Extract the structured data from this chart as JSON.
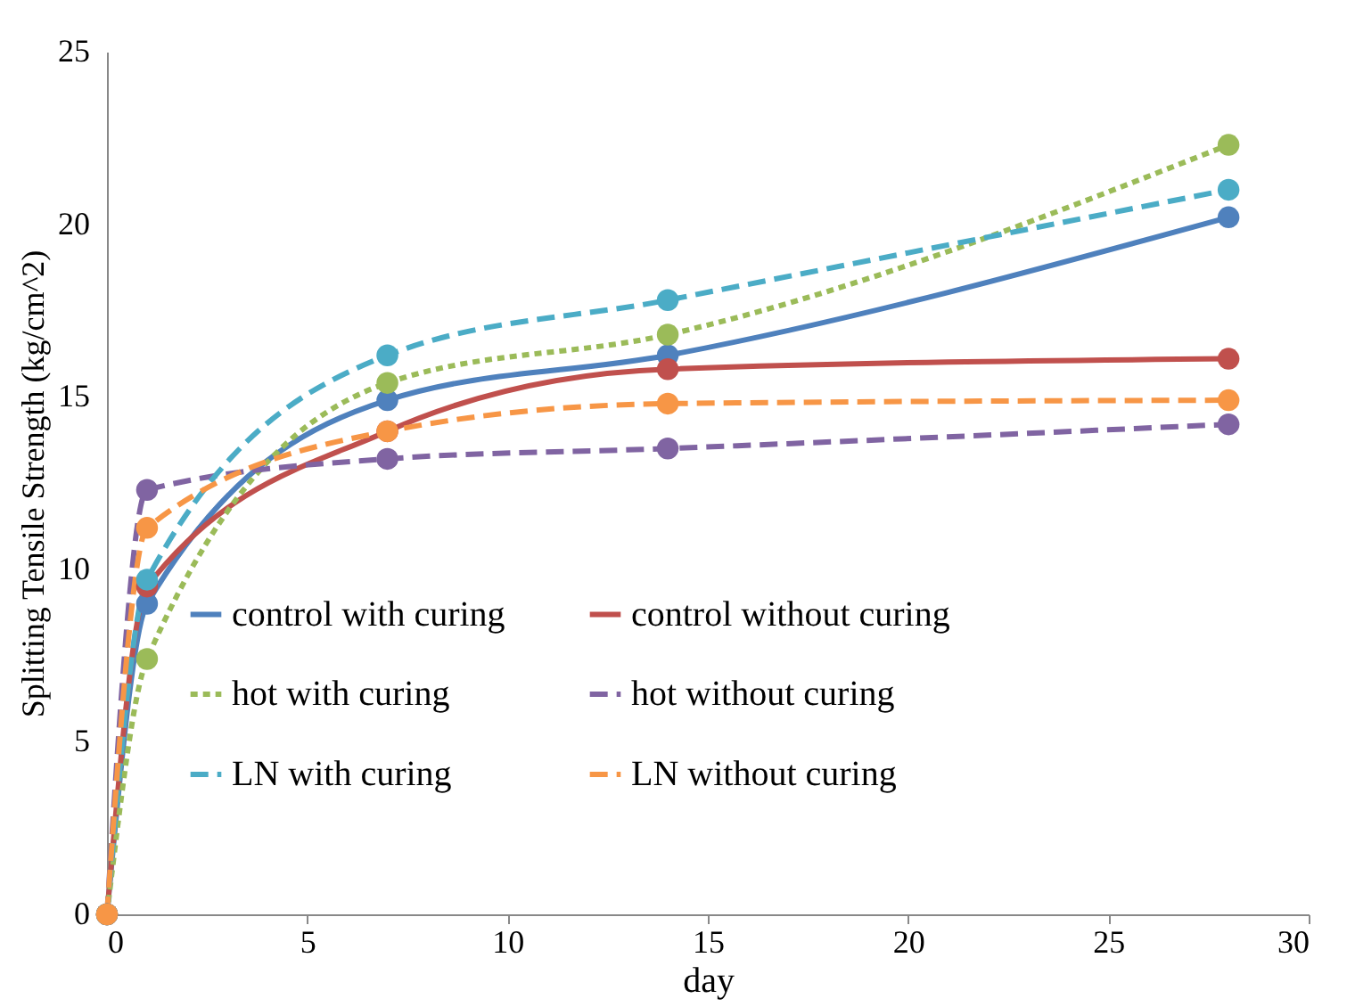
{
  "chart_data": {
    "type": "line",
    "xlabel": "day",
    "ylabel": "Splitting Tensile Strength (kg/cm^2)",
    "x": [
      0,
      1,
      7,
      14,
      28
    ],
    "series": [
      {
        "name": "control with curing",
        "color": "#4f81bd",
        "line_style": "solid",
        "values": [
          0,
          9.0,
          14.9,
          16.2,
          20.2
        ]
      },
      {
        "name": "control without curing",
        "color": "#c0504d",
        "line_style": "solid",
        "values": [
          0,
          9.5,
          14.0,
          15.8,
          16.1
        ]
      },
      {
        "name": "hot with curing",
        "color": "#9bbb59",
        "line_style": "dotted",
        "values": [
          0,
          7.4,
          15.4,
          16.8,
          22.3
        ]
      },
      {
        "name": "hot without curing",
        "color": "#8064a2",
        "line_style": "dashed",
        "values": [
          0,
          12.3,
          13.2,
          13.5,
          14.2
        ]
      },
      {
        "name": "LN with curing",
        "color": "#4bacc6",
        "line_style": "dashed",
        "values": [
          0,
          9.7,
          16.2,
          17.8,
          21.0
        ]
      },
      {
        "name": "LN without curing",
        "color": "#f79646",
        "line_style": "dashed",
        "values": [
          0,
          11.2,
          14.0,
          14.8,
          14.9
        ]
      }
    ],
    "xlim": [
      0,
      30
    ],
    "xticks": [
      0,
      5,
      10,
      15,
      20,
      25,
      30
    ],
    "ylim": [
      0,
      25
    ],
    "yticks": [
      0,
      5,
      10,
      15,
      20,
      25
    ],
    "grid": false,
    "legend": "bottom",
    "marker": "circle"
  }
}
